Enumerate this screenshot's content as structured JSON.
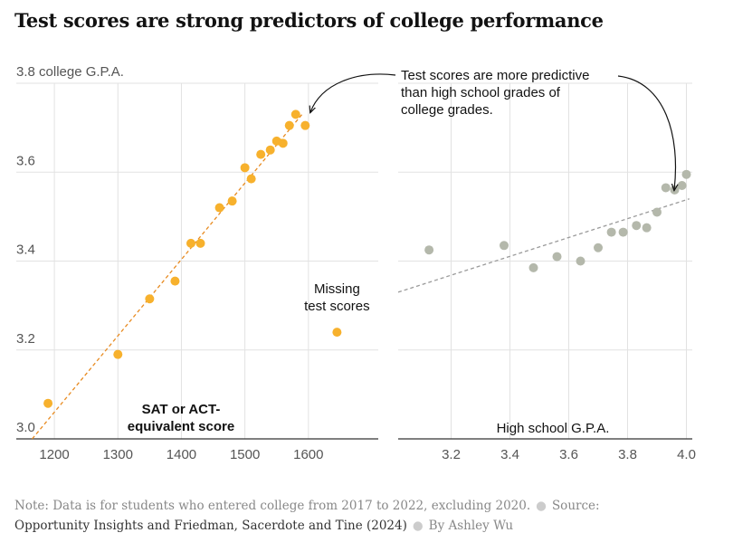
{
  "title": "Test scores are strong predictors of college performance",
  "colors": {
    "accent": "#f7b12d",
    "secondary": "#b4b8ab",
    "trend_accent": "#e88b21",
    "trend_secondary": "#9a9a9a",
    "grid": "#e2e2e2",
    "axis": "#333333",
    "tick_label": "#555555"
  },
  "chart_data": [
    {
      "type": "scatter",
      "xlabel": "SAT or ACT-equivalent score",
      "xlabel_lines": [
        "SAT or ACT-",
        "equivalent score"
      ],
      "ylabel": "college G.P.A.",
      "xlim": [
        1140,
        1710
      ],
      "ylim": [
        3.0,
        3.8
      ],
      "xticks": [
        1200,
        1300,
        1400,
        1500,
        1600
      ],
      "xtick_labels": [
        "1200",
        "1300",
        "1400",
        "1500",
        "1600"
      ],
      "yticks": [
        3.0,
        3.2,
        3.4,
        3.6,
        3.8
      ],
      "ytick_labels": [
        "3.0",
        "3.2",
        "3.4",
        "3.6",
        "3.8"
      ],
      "grid": true,
      "points": [
        {
          "x": 1190,
          "y": 3.08
        },
        {
          "x": 1300,
          "y": 3.19
        },
        {
          "x": 1350,
          "y": 3.315
        },
        {
          "x": 1390,
          "y": 3.355
        },
        {
          "x": 1415,
          "y": 3.44
        },
        {
          "x": 1430,
          "y": 3.44
        },
        {
          "x": 1460,
          "y": 3.52
        },
        {
          "x": 1480,
          "y": 3.535
        },
        {
          "x": 1500,
          "y": 3.61
        },
        {
          "x": 1510,
          "y": 3.585
        },
        {
          "x": 1525,
          "y": 3.64
        },
        {
          "x": 1540,
          "y": 3.65
        },
        {
          "x": 1550,
          "y": 3.67
        },
        {
          "x": 1560,
          "y": 3.665
        },
        {
          "x": 1570,
          "y": 3.705
        },
        {
          "x": 1580,
          "y": 3.73
        },
        {
          "x": 1595,
          "y": 3.705
        }
      ],
      "missing_point": {
        "x": 1645,
        "y": 3.24
      },
      "missing_label_lines": [
        "Missing",
        "test scores"
      ],
      "trend": {
        "x": [
          1165,
          1590
        ],
        "y": [
          3.0,
          3.73
        ]
      }
    },
    {
      "type": "scatter",
      "xlabel": "High school G.P.A.",
      "xlim": [
        3.02,
        4.02
      ],
      "ylim": [
        3.0,
        3.8
      ],
      "xticks": [
        3.2,
        3.4,
        3.6,
        3.8,
        4.0
      ],
      "xtick_labels": [
        "3.2",
        "3.4",
        "3.6",
        "3.8",
        "4.0"
      ],
      "yticks": [
        3.0,
        3.2,
        3.4,
        3.6,
        3.8
      ],
      "grid": true,
      "points": [
        {
          "x": 3.125,
          "y": 3.425
        },
        {
          "x": 3.38,
          "y": 3.435
        },
        {
          "x": 3.48,
          "y": 3.385
        },
        {
          "x": 3.56,
          "y": 3.41
        },
        {
          "x": 3.64,
          "y": 3.4
        },
        {
          "x": 3.7,
          "y": 3.43
        },
        {
          "x": 3.745,
          "y": 3.465
        },
        {
          "x": 3.785,
          "y": 3.465
        },
        {
          "x": 3.83,
          "y": 3.48
        },
        {
          "x": 3.865,
          "y": 3.475
        },
        {
          "x": 3.9,
          "y": 3.51
        },
        {
          "x": 3.93,
          "y": 3.565
        },
        {
          "x": 3.96,
          "y": 3.56
        },
        {
          "x": 3.985,
          "y": 3.57
        },
        {
          "x": 4.0,
          "y": 3.595
        }
      ],
      "trend": {
        "x": [
          3.02,
          4.01
        ],
        "y": [
          3.33,
          3.54
        ]
      }
    }
  ],
  "annotation": {
    "lines": [
      "Test scores are more predictive",
      "than high school grades of",
      "college grades."
    ]
  },
  "footer": {
    "note": "Note: Data is for students who entered college from 2017 to 2022, excluding 2020.",
    "source_label": "Source:",
    "source_text": "Opportunity Insights and Friedman, Sacerdote and Tine (2024)",
    "byline": "By Ashley Wu"
  }
}
